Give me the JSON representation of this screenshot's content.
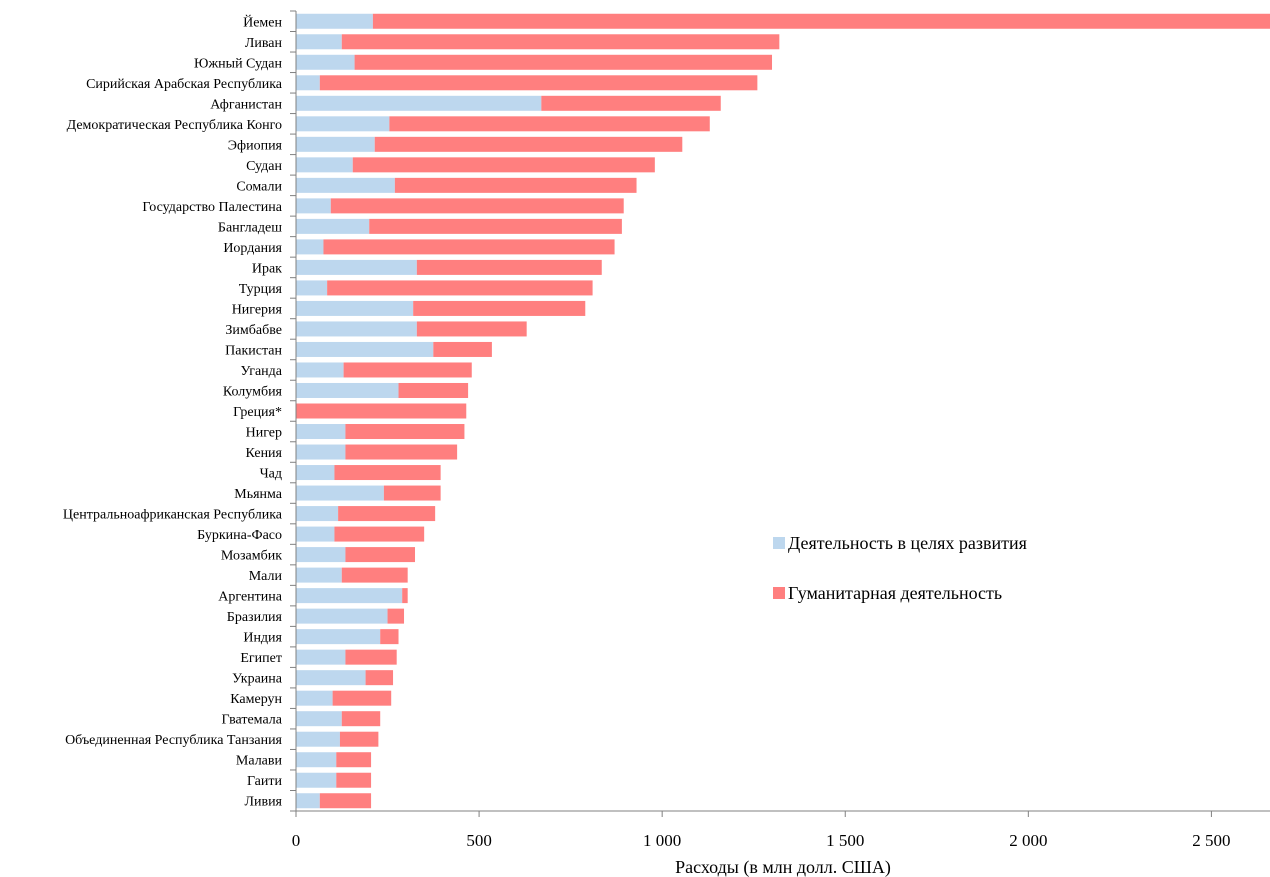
{
  "chart_data": {
    "type": "bar",
    "orientation": "horizontal",
    "stacked": true,
    "xlabel": "Расходы (в млн долл. США)",
    "ylabel": "",
    "title": "",
    "xlim": [
      0,
      2660
    ],
    "x_ticks": [
      0,
      500,
      1000,
      1500,
      2000,
      2500
    ],
    "x_tick_labels": [
      "0",
      "500",
      "1 000",
      "1 500",
      "2 000",
      "2 500"
    ],
    "grid": false,
    "legend_position": "right-middle",
    "categories": [
      "Йемен",
      "Ливан",
      "Южный Судан",
      "Сирийская Арабская Республика",
      "Афганистан",
      "Демократическая Республика Конго",
      "Эфиопия",
      "Судан",
      "Сомали",
      "Государство Палестина",
      "Бангладеш",
      "Иордания",
      "Ирак",
      "Турция",
      "Нигерия",
      "Зимбабве",
      "Пакистан",
      "Уганда",
      "Колумбия",
      "Греция*",
      "Нигер",
      "Кения",
      "Чад",
      "Мьянма",
      "Центральноафриканская Республика",
      "Буркина-Фасо",
      "Мозамбик",
      "Мали",
      "Аргентина",
      "Бразилия",
      "Индия",
      "Египет",
      "Украина",
      "Камерун",
      "Гватемала",
      "Объединенная Республика Танзания",
      "Малави",
      "Гаити",
      "Ливия"
    ],
    "series": [
      {
        "name": "Деятельность в целях развития",
        "color": "#bdd7ee",
        "values": [
          210,
          125,
          160,
          65,
          670,
          255,
          215,
          155,
          270,
          95,
          200,
          75,
          330,
          85,
          320,
          330,
          375,
          130,
          280,
          0,
          135,
          135,
          105,
          240,
          115,
          105,
          135,
          125,
          290,
          250,
          230,
          135,
          190,
          100,
          125,
          120,
          110,
          110,
          65
        ]
      },
      {
        "name": "Гуманитарная деятельность",
        "color": "#ff7f7f",
        "values": [
          2450,
          1195,
          1140,
          1195,
          490,
          875,
          840,
          825,
          660,
          800,
          690,
          795,
          505,
          725,
          470,
          300,
          160,
          350,
          190,
          465,
          325,
          305,
          290,
          155,
          265,
          245,
          190,
          180,
          15,
          45,
          50,
          140,
          75,
          160,
          105,
          105,
          95,
          95,
          140
        ]
      }
    ]
  }
}
